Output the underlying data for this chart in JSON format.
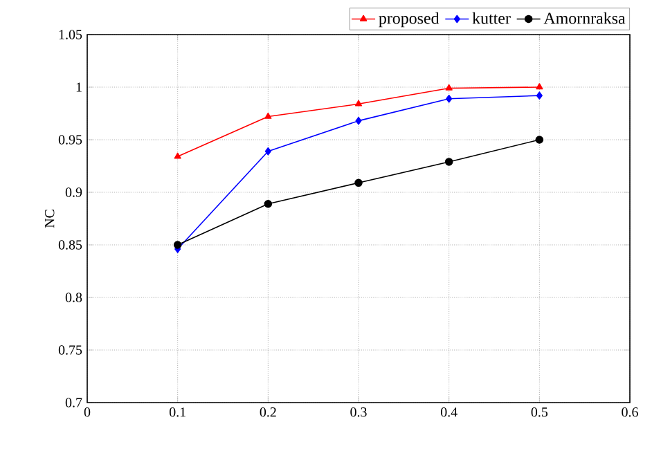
{
  "chart_data": {
    "type": "line",
    "ylabel": "NC",
    "x": [
      0.1,
      0.2,
      0.3,
      0.4,
      0.5
    ],
    "series": [
      {
        "name": "proposed",
        "color": "#ff0000",
        "marker": "triangle",
        "values": [
          0.934,
          0.972,
          0.984,
          0.999,
          1.0
        ]
      },
      {
        "name": "kutter",
        "color": "#0000ff",
        "marker": "diamond",
        "values": [
          0.846,
          0.939,
          0.968,
          0.989,
          0.992
        ]
      },
      {
        "name": "Amornraksa",
        "color": "#000000",
        "marker": "circle",
        "values": [
          0.85,
          0.889,
          0.909,
          0.929,
          0.95
        ]
      }
    ],
    "xlim": [
      0,
      0.6
    ],
    "xticks": [
      0,
      0.1,
      0.2,
      0.3,
      0.4,
      0.5,
      0.6
    ],
    "ylim": [
      0.7,
      1.05
    ],
    "yticks": [
      0.7,
      0.75,
      0.8,
      0.85,
      0.9,
      0.95,
      1,
      1.05
    ],
    "grid": true,
    "legend": "top right",
    "line_style": "solid"
  }
}
